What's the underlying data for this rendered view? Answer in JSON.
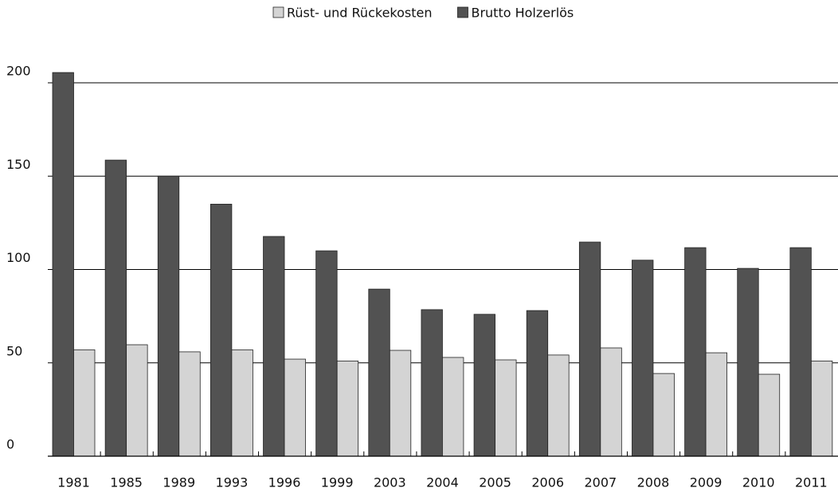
{
  "chart_data": {
    "type": "bar",
    "categories": [
      "1981",
      "1985",
      "1989",
      "1993",
      "1996",
      "1999",
      "2003",
      "2004",
      "2005",
      "2006",
      "2007",
      "2008",
      "2009",
      "2010",
      "2011"
    ],
    "series": [
      {
        "name": "Brutto Holzerlös",
        "color": "#525252",
        "values": [
          205.5,
          158.6,
          150,
          135,
          117.7,
          110,
          89.5,
          78.5,
          76,
          78,
          114.7,
          105,
          111.7,
          100.6,
          111.7
        ]
      },
      {
        "name": "Rüst- und Rückekosten",
        "color": "#d4d4d4",
        "values": [
          57,
          59.7,
          55.9,
          57,
          52,
          51,
          56.7,
          52.9,
          51.6,
          54.2,
          58,
          44.3,
          55.4,
          43.9,
          51
        ]
      }
    ],
    "legend_order": [
      1,
      0
    ],
    "ylim": [
      0,
      210
    ],
    "yticks": [
      0,
      50,
      100,
      150,
      200
    ],
    "grid": true
  }
}
